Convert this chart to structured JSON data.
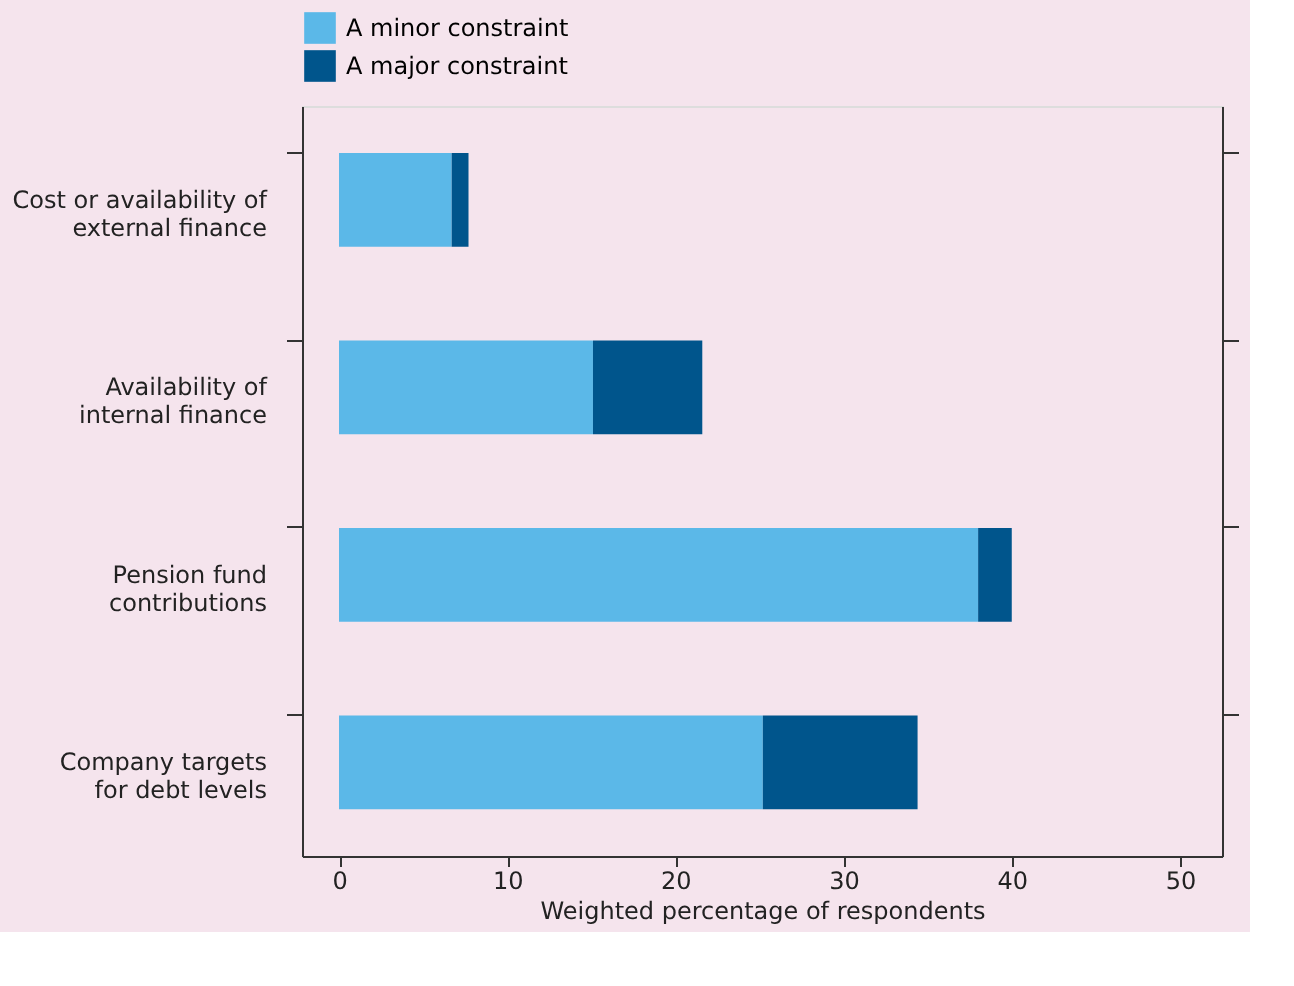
{
  "chart_data": {
    "type": "bar",
    "orientation": "horizontal",
    "stacked": true,
    "categories": [
      "Cost or availability of\nexternal finance",
      "Availability of\ninternal finance",
      "Pension fund\ncontributions",
      "Company targets\nfor debt levels"
    ],
    "series": [
      {
        "name": "A minor constraint",
        "color": "#5bb8e8",
        "values": [
          6.7,
          15.1,
          38.0,
          25.2
        ]
      },
      {
        "name": "A major constraint",
        "color": "#00558c",
        "values": [
          1.0,
          6.5,
          2.0,
          9.2
        ]
      }
    ],
    "xlabel": "Weighted percentage of respondents",
    "xlim": [
      -2.2,
      52.5
    ],
    "xticks": [
      0,
      10,
      20,
      30,
      40,
      50
    ],
    "grid": false,
    "legend": "top left"
  }
}
